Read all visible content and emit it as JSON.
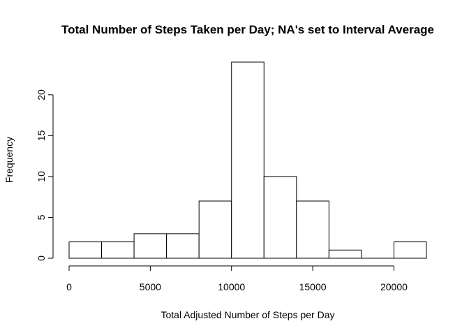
{
  "chart_data": {
    "type": "bar",
    "title": "Total Number of Steps Taken per Day; NA's set to Interval Average",
    "xlabel": "Total Adjusted Number of Steps per Day",
    "ylabel": "Frequency",
    "bins": [
      {
        "start": 0,
        "end": 2000,
        "count": 2
      },
      {
        "start": 2000,
        "end": 4000,
        "count": 2
      },
      {
        "start": 4000,
        "end": 6000,
        "count": 3
      },
      {
        "start": 6000,
        "end": 8000,
        "count": 3
      },
      {
        "start": 8000,
        "end": 10000,
        "count": 7
      },
      {
        "start": 10000,
        "end": 12000,
        "count": 24
      },
      {
        "start": 12000,
        "end": 14000,
        "count": 10
      },
      {
        "start": 14000,
        "end": 16000,
        "count": 7
      },
      {
        "start": 16000,
        "end": 18000,
        "count": 1
      },
      {
        "start": 18000,
        "end": 20000,
        "count": 0
      },
      {
        "start": 20000,
        "end": 22000,
        "count": 2
      }
    ],
    "xticks": [
      0,
      5000,
      10000,
      15000,
      20000
    ],
    "xtick_labels": [
      "0",
      "5000",
      "10000",
      "15000",
      "20000"
    ],
    "yticks": [
      0,
      5,
      10,
      15,
      20
    ],
    "ytick_labels": [
      "0",
      "5",
      "10",
      "15",
      "20"
    ],
    "xlim": [
      0,
      22000
    ],
    "ylim": [
      0,
      24
    ],
    "grid": false,
    "colors": {
      "bar_fill": "#ffffff",
      "bar_stroke": "#000000",
      "axis": "#000000"
    }
  }
}
